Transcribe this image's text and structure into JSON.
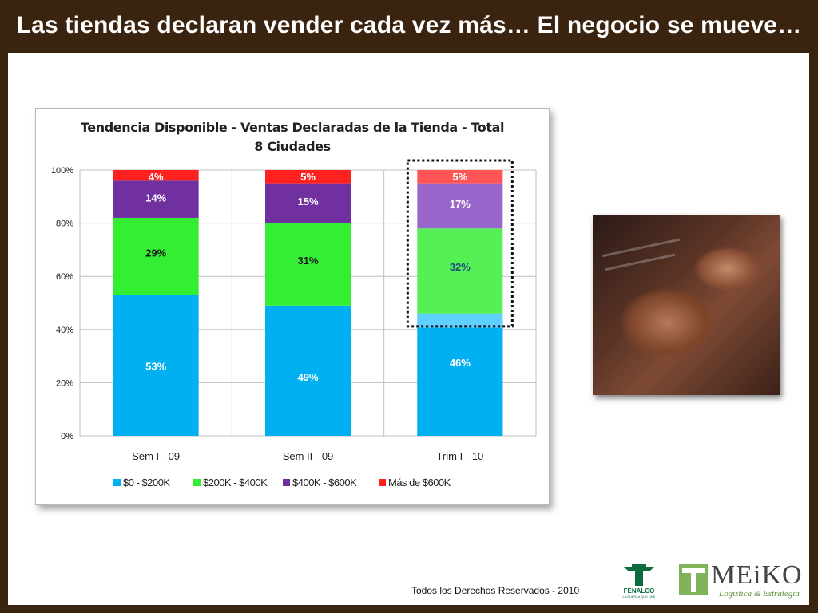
{
  "slide": {
    "title": "Las tiendas declaran vender cada vez más… El negocio se mueve…",
    "footer": "Todos los Derechos Reservados - 2010",
    "logos": {
      "fenalco": {
        "name": "FENALCO",
        "tagline": "LA FUERZA QUE UNE"
      },
      "meiko": {
        "name": "MEiKO",
        "tagline": "Logística & Estrategia"
      }
    }
  },
  "chart_data": {
    "type": "bar",
    "stacked": true,
    "title_line1": "Tendencia Disponible - Ventas Declaradas de la Tienda - Total",
    "title_line2": "8 Ciudades",
    "categories": [
      "Sem I - 09",
      "Sem II - 09",
      "Trim I - 10"
    ],
    "series": [
      {
        "name": "$0 - $200K",
        "values": [
          53,
          49,
          46
        ],
        "color": "#00b0f0"
      },
      {
        "name": "$200K - $400K",
        "values": [
          29,
          31,
          32
        ],
        "color": "#33ee33"
      },
      {
        "name": "$400K - $600K",
        "values": [
          14,
          15,
          17
        ],
        "color": "#7030a0"
      },
      {
        "name": "Más de $600K",
        "values": [
          4,
          5,
          5
        ],
        "color": "#ff2020"
      }
    ],
    "data_labels": [
      [
        "53%",
        "49%",
        "46%"
      ],
      [
        "29%",
        "31%",
        "32%"
      ],
      [
        "14%",
        "15%",
        "17%"
      ],
      [
        "4%",
        "5%",
        "5%"
      ]
    ],
    "y_ticks": [
      "0%",
      "20%",
      "40%",
      "60%",
      "80%",
      "100%"
    ],
    "ylim": [
      0,
      100
    ],
    "grid": true,
    "legend_position": "bottom",
    "highlight": "Trim I - 10",
    "highlight_colors": [
      "#33ccff",
      "#55f055",
      "#9966cc",
      "#ff5555"
    ]
  }
}
